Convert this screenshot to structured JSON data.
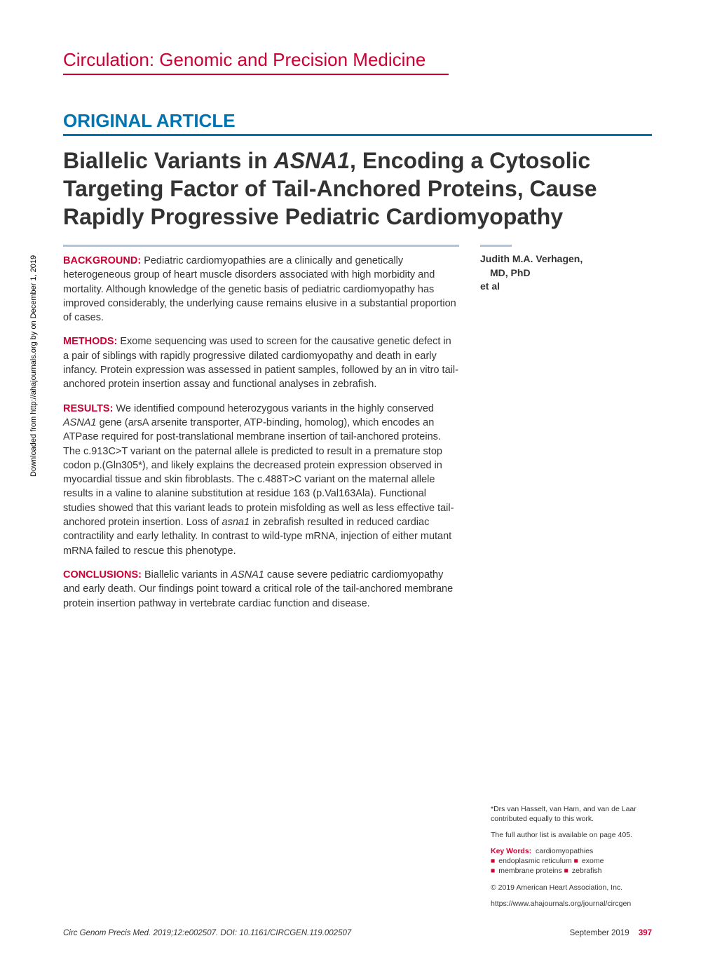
{
  "sideText": "Downloaded from http://ahajournals.org by on December 1, 2019",
  "journalHeader": "Circulation: Genomic and Precision Medicine",
  "articleType": "ORIGINAL ARTICLE",
  "title": {
    "part1": "Biallelic Variants in ",
    "italic": "ASNA1",
    "part2": ", Encoding a Cytosolic Targeting Factor of Tail-Anchored Proteins, Cause Rapidly Progressive Pediatric Cardiomyopathy"
  },
  "abstract": {
    "background": {
      "label": "BACKGROUND:",
      "text": " Pediatric cardiomyopathies are a clinically and genetically heterogeneous group of heart muscle disorders associated with high morbidity and mortality. Although knowledge of the genetic basis of pediatric cardiomyopathy has improved considerably, the underlying cause remains elusive in a substantial proportion of cases."
    },
    "methods": {
      "label": "METHODS:",
      "text": " Exome sequencing was used to screen for the causative genetic defect in a pair of siblings with rapidly progressive dilated cardiomyopathy and death in early infancy. Protein expression was assessed in patient samples, followed by an in vitro tail-anchored protein insertion assay and functional analyses in zebrafish."
    },
    "results": {
      "label": "RESULTS:",
      "text1": " We identified compound heterozygous variants in the highly conserved ",
      "italic1": "ASNA1",
      "text2": " gene (arsA arsenite transporter, ATP-binding, homolog), which encodes an ATPase required for post-translational membrane insertion of tail-anchored proteins. The c.913C>T variant on the paternal allele is predicted to result in a premature stop codon p.(Gln305*), and likely explains the decreased protein expression observed in myocardial tissue and skin fibroblasts. The c.488T>C variant on the maternal allele results in a valine to alanine substitution at residue 163 (p.Val163Ala). Functional studies showed that this variant leads to protein misfolding as well as less effective tail-anchored protein insertion. Loss of ",
      "italic2": "asna1",
      "text3": " in zebrafish resulted in reduced cardiac contractility and early lethality. In contrast to wild-type mRNA, injection of either mutant mRNA failed to rescue this phenotype."
    },
    "conclusions": {
      "label": "CONCLUSIONS:",
      "text1": " Biallelic variants in ",
      "italic1": "ASNA1",
      "text2": " cause severe pediatric cardiomyopathy and early death. Our findings point toward a critical role of the tail-anchored membrane protein insertion pathway in vertebrate cardiac function and disease."
    }
  },
  "author": {
    "name": "Judith M.A. Verhagen,",
    "degree": "MD, PhD",
    "etal": "et al"
  },
  "sideNotes": {
    "contribution": "*Drs van Hasselt, van Ham, and van de Laar contributed equally to this work.",
    "authorList": "The full author list is available on page 405.",
    "keywordsLabel": "Key Words:",
    "kw1": "cardiomyopathies",
    "kw2": "endoplasmic reticulum",
    "kw3": "exome",
    "kw4": "membrane proteins",
    "kw5": "zebrafish",
    "copyright": "© 2019 American Heart Association, Inc.",
    "url": "https://www.ahajournals.org/journal/circgen"
  },
  "footer": {
    "journal": "Circ Genom Precis Med.",
    "citation": " 2019;12:e002507. DOI: 10.1161/CIRCGEN.119.002507",
    "date": "September 2019",
    "page": "397"
  }
}
